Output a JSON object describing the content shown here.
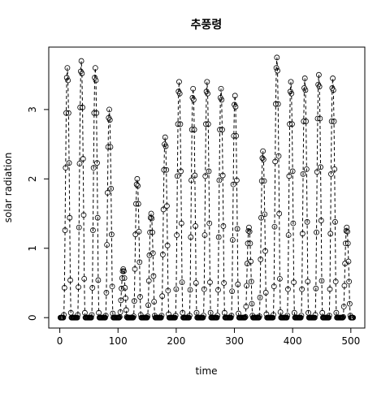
{
  "chart_data": {
    "type": "line",
    "title": "추풍령",
    "xlabel": "time",
    "ylabel": "solar radiation",
    "marker": "circle",
    "line_style": "dashed",
    "color": "#000000",
    "xlim": [
      -19,
      524
    ],
    "ylim": [
      -0.15,
      3.9
    ],
    "xticks": [
      0,
      100,
      200,
      300,
      400,
      500
    ],
    "yticks": [
      0,
      1,
      2,
      3
    ],
    "values": [
      0,
      0,
      0,
      0,
      0,
      0,
      0.04,
      0.43,
      1.26,
      2.16,
      2.95,
      3.46,
      3.6,
      3.42,
      2.95,
      2.23,
      1.44,
      0.54,
      0.07,
      0,
      0,
      0,
      0,
      0,
      0,
      0,
      0,
      0,
      0,
      0,
      0.04,
      0.44,
      1.3,
      2.22,
      3.03,
      3.55,
      3.7,
      3.52,
      3.03,
      2.29,
      1.48,
      0.56,
      0.07,
      0,
      0,
      0,
      0,
      0,
      0,
      0,
      0,
      0,
      0,
      0,
      0.04,
      0.43,
      1.26,
      2.16,
      2.95,
      3.46,
      3.6,
      3.42,
      2.95,
      2.23,
      1.44,
      0.54,
      0.07,
      0,
      0,
      0,
      0,
      0,
      0,
      0,
      0,
      0,
      0,
      0,
      0.03,
      0.36,
      1.05,
      1.8,
      2.46,
      2.88,
      3.0,
      2.85,
      2.46,
      1.86,
      1.2,
      0.45,
      0.06,
      0,
      0,
      0,
      0,
      0,
      0,
      0,
      0,
      0,
      0,
      0,
      0.01,
      0.08,
      0.25,
      0.42,
      0.57,
      0.67,
      0.7,
      0.67,
      0.57,
      0.43,
      0.28,
      0.11,
      0.01,
      0,
      0,
      0,
      0,
      0,
      0,
      0,
      0,
      0,
      0,
      0,
      0.02,
      0.24,
      0.7,
      1.2,
      1.64,
      1.92,
      2.0,
      1.9,
      1.64,
      1.24,
      0.8,
      0.3,
      0.04,
      0,
      0,
      0,
      0,
      0,
      0,
      0,
      0,
      0,
      0,
      0,
      0.02,
      0.18,
      0.53,
      0.9,
      1.23,
      1.44,
      1.5,
      1.43,
      1.23,
      0.93,
      0.6,
      0.23,
      0.03,
      0,
      0,
      0,
      0,
      0,
      0,
      0,
      0,
      0,
      0,
      0,
      0.03,
      0.31,
      0.91,
      1.56,
      2.13,
      2.5,
      2.6,
      2.47,
      2.13,
      1.61,
      1.04,
      0.39,
      0.05,
      0,
      0,
      0,
      0,
      0,
      0,
      0,
      0,
      0,
      0,
      0,
      0.03,
      0.41,
      1.19,
      2.04,
      2.79,
      3.26,
      3.4,
      3.23,
      2.79,
      2.11,
      1.36,
      0.51,
      0.07,
      0,
      0,
      0,
      0,
      0,
      0,
      0,
      0,
      0,
      0,
      0,
      0.03,
      0.4,
      1.16,
      1.98,
      2.71,
      3.17,
      3.3,
      3.14,
      2.71,
      2.05,
      1.32,
      0.5,
      0.07,
      0,
      0,
      0,
      0,
      0,
      0,
      0,
      0,
      0,
      0,
      0,
      0.03,
      0.41,
      1.19,
      2.04,
      2.79,
      3.26,
      3.4,
      3.23,
      2.79,
      2.11,
      1.36,
      0.51,
      0.07,
      0,
      0,
      0,
      0,
      0,
      0,
      0,
      0,
      0,
      0,
      0,
      0.03,
      0.4,
      1.16,
      1.98,
      2.71,
      3.17,
      3.3,
      3.14,
      2.71,
      2.05,
      1.32,
      0.5,
      0.07,
      0,
      0,
      0,
      0,
      0,
      0,
      0,
      0,
      0,
      0,
      0,
      0.03,
      0.38,
      1.12,
      1.92,
      2.62,
      3.07,
      3.2,
      3.04,
      2.62,
      1.98,
      1.28,
      0.48,
      0.06,
      0,
      0,
      0,
      0,
      0,
      0,
      0,
      0,
      0,
      0,
      0,
      0.01,
      0.16,
      0.46,
      0.78,
      1.07,
      1.25,
      1.3,
      1.24,
      1.07,
      0.81,
      0.52,
      0.2,
      0.03,
      0,
      0,
      0,
      0,
      0,
      0,
      0,
      0,
      0,
      0,
      0,
      0.02,
      0.29,
      0.84,
      1.44,
      1.97,
      2.3,
      2.4,
      2.28,
      1.97,
      1.49,
      0.96,
      0.36,
      0.05,
      0,
      0,
      0,
      0,
      0,
      0,
      0,
      0,
      0,
      0,
      0,
      0.04,
      0.45,
      1.31,
      2.25,
      3.08,
      3.6,
      3.75,
      3.56,
      3.08,
      2.33,
      1.5,
      0.56,
      0.08,
      0,
      0,
      0,
      0,
      0,
      0,
      0,
      0,
      0,
      0,
      0,
      0.03,
      0.41,
      1.19,
      2.04,
      2.79,
      3.26,
      3.4,
      3.23,
      2.79,
      2.11,
      1.36,
      0.51,
      0.07,
      0,
      0,
      0,
      0,
      0,
      0,
      0,
      0,
      0,
      0,
      0,
      0.03,
      0.41,
      1.21,
      2.07,
      2.83,
      3.31,
      3.45,
      3.28,
      2.83,
      2.14,
      1.38,
      0.52,
      0.07,
      0,
      0,
      0,
      0,
      0,
      0,
      0,
      0,
      0,
      0,
      0,
      0.04,
      0.42,
      1.23,
      2.1,
      2.87,
      3.36,
      3.5,
      3.33,
      2.87,
      2.17,
      1.4,
      0.53,
      0.07,
      0,
      0,
      0,
      0,
      0,
      0,
      0,
      0,
      0,
      0,
      0,
      0.03,
      0.41,
      1.21,
      2.07,
      2.83,
      3.31,
      3.45,
      3.28,
      2.83,
      2.14,
      1.38,
      0.52,
      0.07,
      0,
      0,
      0,
      0,
      0,
      0,
      0,
      0,
      0,
      0,
      0,
      0.01,
      0.16,
      0.46,
      0.78,
      1.07,
      1.25,
      1.3,
      1.24,
      1.07,
      0.81,
      0.52,
      0.2,
      0.03,
      0,
      0,
      0,
      0,
      0
    ]
  }
}
